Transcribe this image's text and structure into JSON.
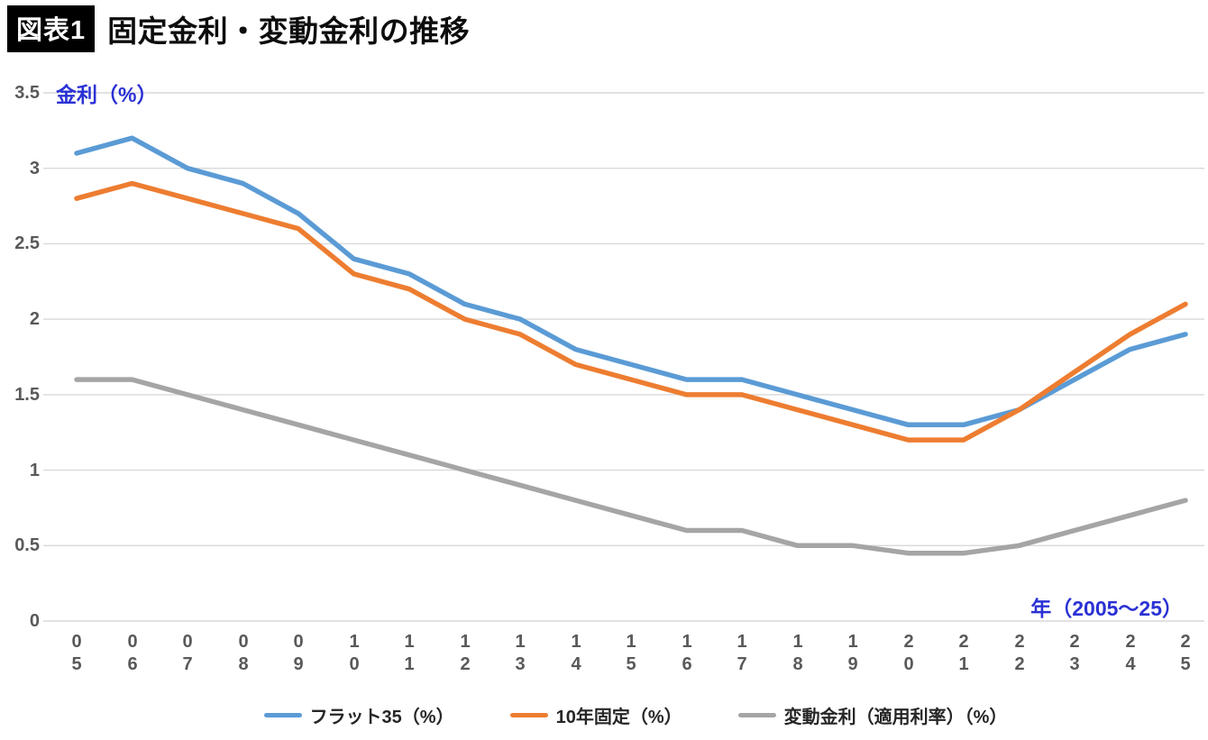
{
  "header": {
    "badge": "図表1",
    "title": "固定金利・変動金利の推移"
  },
  "chart_data": {
    "type": "line",
    "y_axis_title": "金利（%）",
    "x_axis_title": "年（2005～25）",
    "categories": [
      "05",
      "06",
      "07",
      "08",
      "09",
      "10",
      "11",
      "12",
      "13",
      "14",
      "15",
      "16",
      "17",
      "18",
      "19",
      "20",
      "21",
      "22",
      "23",
      "24",
      "25"
    ],
    "series": [
      {
        "id": "flat35",
        "name": "フラット35（%）",
        "color": "#5B9BD5",
        "values": [
          3.1,
          3.2,
          3.0,
          2.9,
          2.7,
          2.4,
          2.3,
          2.1,
          2.0,
          1.8,
          1.7,
          1.6,
          1.6,
          1.5,
          1.4,
          1.3,
          1.3,
          1.4,
          1.6,
          1.8,
          1.9
        ]
      },
      {
        "id": "fixed10",
        "name": "10年固定（%）",
        "color": "#ED7D31",
        "values": [
          2.8,
          2.9,
          2.8,
          2.7,
          2.6,
          2.3,
          2.2,
          2.0,
          1.9,
          1.7,
          1.6,
          1.5,
          1.5,
          1.4,
          1.3,
          1.2,
          1.2,
          1.4,
          1.65,
          1.9,
          2.1
        ]
      },
      {
        "id": "variable",
        "name": "変動金利（適用利率）（%）",
        "color": "#A5A5A5",
        "values": [
          1.6,
          1.6,
          1.5,
          1.4,
          1.3,
          1.2,
          1.1,
          1.0,
          0.9,
          0.8,
          0.7,
          0.6,
          0.6,
          0.5,
          0.5,
          0.45,
          0.45,
          0.5,
          0.6,
          0.7,
          0.8
        ]
      }
    ],
    "ylim": [
      0,
      3.5
    ],
    "yticks": [
      3.5,
      3,
      2.5,
      2,
      1.5,
      1,
      0.5,
      0
    ],
    "grid": true,
    "gridline_color": "#d9d9d9",
    "legend_position": "bottom"
  }
}
